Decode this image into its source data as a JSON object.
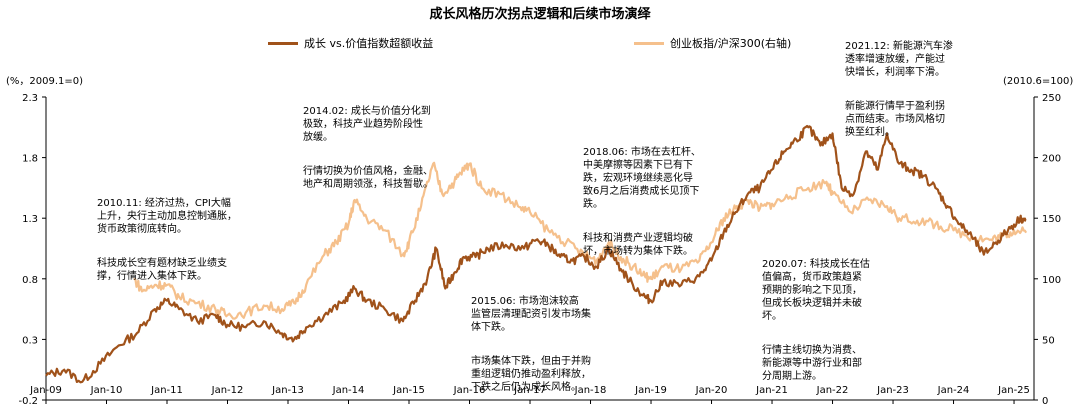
{
  "chart_data": {
    "type": "line",
    "title": "成长风格历次拐点逻辑和后续市场演绎",
    "left_axis_unit": "(%，2009.1=0)",
    "right_axis_unit": "(2010.6=100)",
    "left_ylim": [
      -0.2,
      2.3
    ],
    "left_ticks": [
      "-0.2",
      "0.3",
      "0.8",
      "1.3",
      "1.8",
      "2.3"
    ],
    "right_ylim": [
      0,
      250
    ],
    "right_ticks": [
      "0",
      "50",
      "100",
      "150",
      "200",
      "250"
    ],
    "x_ticks": [
      "Jan-09",
      "Jan-10",
      "Jan-11",
      "Jan-12",
      "Jan-13",
      "Jan-14",
      "Jan-15",
      "Jan-16",
      "Jan-17",
      "Jan-18",
      "Jan-19",
      "Jan-20",
      "Jan-21",
      "Jan-22",
      "Jan-23",
      "Jan-24",
      "Jan-25"
    ],
    "series": [
      {
        "name": "成长 vs.价值指数超额收益",
        "color": "#a0521a",
        "axis": "left",
        "points": [
          [
            2009.0,
            0.0
          ],
          [
            2009.3,
            0.05
          ],
          [
            2009.6,
            -0.05
          ],
          [
            2009.9,
            0.1
          ],
          [
            2010.2,
            0.25
          ],
          [
            2010.5,
            0.35
          ],
          [
            2010.8,
            0.55
          ],
          [
            2011.0,
            0.62
          ],
          [
            2011.2,
            0.55
          ],
          [
            2011.5,
            0.45
          ],
          [
            2011.8,
            0.5
          ],
          [
            2012.0,
            0.42
          ],
          [
            2012.3,
            0.4
          ],
          [
            2012.6,
            0.45
          ],
          [
            2012.9,
            0.35
          ],
          [
            2013.1,
            0.3
          ],
          [
            2013.3,
            0.4
          ],
          [
            2013.6,
            0.5
          ],
          [
            2013.9,
            0.6
          ],
          [
            2014.1,
            0.72
          ],
          [
            2014.3,
            0.62
          ],
          [
            2014.6,
            0.55
          ],
          [
            2014.9,
            0.45
          ],
          [
            2015.1,
            0.62
          ],
          [
            2015.3,
            0.8
          ],
          [
            2015.45,
            1.05
          ],
          [
            2015.6,
            0.72
          ],
          [
            2015.75,
            0.85
          ],
          [
            2015.9,
            0.98
          ],
          [
            2016.1,
            0.98
          ],
          [
            2016.3,
            1.05
          ],
          [
            2016.6,
            1.08
          ],
          [
            2016.9,
            1.05
          ],
          [
            2017.1,
            1.12
          ],
          [
            2017.3,
            1.08
          ],
          [
            2017.5,
            0.98
          ],
          [
            2017.7,
            0.95
          ],
          [
            2017.9,
            0.98
          ],
          [
            2018.1,
            0.9
          ],
          [
            2018.3,
            1.05
          ],
          [
            2018.5,
            0.88
          ],
          [
            2018.7,
            0.75
          ],
          [
            2018.9,
            0.65
          ],
          [
            2019.0,
            0.62
          ],
          [
            2019.2,
            0.78
          ],
          [
            2019.5,
            0.75
          ],
          [
            2019.8,
            0.82
          ],
          [
            2020.0,
            0.95
          ],
          [
            2020.2,
            1.18
          ],
          [
            2020.4,
            1.35
          ],
          [
            2020.6,
            1.5
          ],
          [
            2020.8,
            1.55
          ],
          [
            2021.0,
            1.7
          ],
          [
            2021.2,
            1.85
          ],
          [
            2021.4,
            1.95
          ],
          [
            2021.6,
            2.05
          ],
          [
            2021.8,
            1.9
          ],
          [
            2022.0,
            2.0
          ],
          [
            2022.15,
            1.55
          ],
          [
            2022.35,
            1.5
          ],
          [
            2022.55,
            1.85
          ],
          [
            2022.75,
            1.7
          ],
          [
            2022.9,
            2.0
          ],
          [
            2023.1,
            1.75
          ],
          [
            2023.3,
            1.7
          ],
          [
            2023.5,
            1.65
          ],
          [
            2023.7,
            1.55
          ],
          [
            2023.9,
            1.4
          ],
          [
            2024.1,
            1.25
          ],
          [
            2024.3,
            1.15
          ],
          [
            2024.5,
            1.0
          ],
          [
            2024.7,
            1.1
          ],
          [
            2024.9,
            1.2
          ],
          [
            2025.1,
            1.3
          ],
          [
            2025.2,
            1.28
          ]
        ]
      },
      {
        "name": "创业板指/沪深300(右轴)",
        "color": "#f5c08c",
        "axis": "right",
        "points": [
          [
            2010.45,
            100
          ],
          [
            2010.6,
            90
          ],
          [
            2010.8,
            95
          ],
          [
            2011.0,
            95
          ],
          [
            2011.2,
            85
          ],
          [
            2011.5,
            80
          ],
          [
            2011.8,
            75
          ],
          [
            2012.0,
            70
          ],
          [
            2012.3,
            72
          ],
          [
            2012.6,
            78
          ],
          [
            2012.9,
            75
          ],
          [
            2013.1,
            80
          ],
          [
            2013.3,
            95
          ],
          [
            2013.6,
            120
          ],
          [
            2013.8,
            130
          ],
          [
            2014.0,
            145
          ],
          [
            2014.1,
            165
          ],
          [
            2014.3,
            150
          ],
          [
            2014.6,
            140
          ],
          [
            2014.9,
            120
          ],
          [
            2015.0,
            130
          ],
          [
            2015.2,
            160
          ],
          [
            2015.4,
            195
          ],
          [
            2015.55,
            170
          ],
          [
            2015.75,
            180
          ],
          [
            2015.9,
            190
          ],
          [
            2016.0,
            195
          ],
          [
            2016.2,
            175
          ],
          [
            2016.5,
            170
          ],
          [
            2016.8,
            160
          ],
          [
            2017.0,
            155
          ],
          [
            2017.3,
            140
          ],
          [
            2017.6,
            130
          ],
          [
            2017.9,
            120
          ],
          [
            2018.1,
            115
          ],
          [
            2018.3,
            130
          ],
          [
            2018.5,
            118
          ],
          [
            2018.7,
            110
          ],
          [
            2018.9,
            102
          ],
          [
            2019.0,
            100
          ],
          [
            2019.2,
            110
          ],
          [
            2019.5,
            108
          ],
          [
            2019.8,
            115
          ],
          [
            2020.0,
            130
          ],
          [
            2020.2,
            150
          ],
          [
            2020.4,
            158
          ],
          [
            2020.6,
            165
          ],
          [
            2020.8,
            158
          ],
          [
            2021.0,
            162
          ],
          [
            2021.3,
            168
          ],
          [
            2021.6,
            175
          ],
          [
            2021.9,
            180
          ],
          [
            2022.0,
            170
          ],
          [
            2022.3,
            155
          ],
          [
            2022.6,
            165
          ],
          [
            2022.9,
            160
          ],
          [
            2023.1,
            150
          ],
          [
            2023.4,
            148
          ],
          [
            2023.7,
            145
          ],
          [
            2024.0,
            140
          ],
          [
            2024.3,
            135
          ],
          [
            2024.6,
            132
          ],
          [
            2024.8,
            135
          ],
          [
            2025.0,
            140
          ],
          [
            2025.2,
            138
          ]
        ]
      }
    ]
  },
  "annotations": [
    {
      "id": "a2010",
      "lines": [
        "2010.11: 经济过热，CPI大幅\n上升，央行主动加息控制通胀，\n货币政策彻底转向。",
        "科技成长空有题材缺乏业绩支\n撑，行情进入集体下跌。"
      ]
    },
    {
      "id": "a2014",
      "lines": [
        "2014.02: 成长与价值分化到\n极致，科技产业趋势阶段性\n放缓。",
        "行情切换为价值风格，金融、\n地产和周期领涨，科技暂歇。"
      ]
    },
    {
      "id": "a2015",
      "lines": [
        "2015.06: 市场泡沫较高\n监管层清理配资引发市场集\n体下跌。",
        "市场集体下跌，但由于并购\n重组逻辑仍推动盈利释放，\n下跌之后仍为成长风格。"
      ]
    },
    {
      "id": "a2018",
      "lines": [
        "2018.06: 市场在去杠杆、\n中美摩擦等因素下已有下\n跌，宏观环境继续恶化导\n致6月之后消费成长见顶下\n跌。",
        "科技和消费产业逻辑均破\n坏，市场转为集体下跌。"
      ]
    },
    {
      "id": "a2020",
      "lines": [
        "2020.07: 科技成长在估\n值偏高，货币政策趋紧\n预期的影响之下见顶，\n但成长板块逻辑并未破\n坏。",
        "行情主线切换为消费、\n新能源等中游行业和部\n分周期上游。"
      ]
    },
    {
      "id": "a2021",
      "lines": [
        "2021.12: 新能源汽车渗\n透率增速放缓，产能过\n快增长，利润率下滑。",
        "新能源行情早于盈利拐\n点而结束。市场风格切\n换至红利。"
      ]
    }
  ]
}
